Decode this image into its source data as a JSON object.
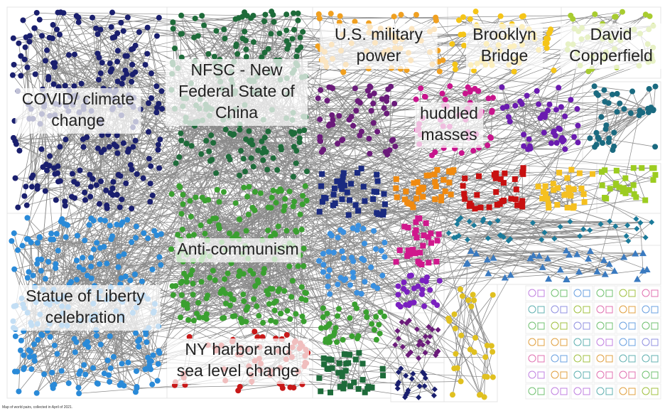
{
  "clusters": [
    {
      "label_lines": [
        "COVID/ climate",
        "change"
      ]
    },
    {
      "label_lines": [
        "NFSC - New",
        "Federal State of",
        "China"
      ]
    },
    {
      "label_lines": [
        "U.S. military",
        "power"
      ]
    },
    {
      "label_lines": [
        "Brooklyn",
        "Bridge"
      ]
    },
    {
      "label_lines": [
        "David",
        "Copperfield"
      ]
    },
    {
      "label_lines": [
        "huddled",
        "masses"
      ]
    },
    {
      "label_lines": [
        "Anti-communism"
      ]
    },
    {
      "label_lines": [
        "Statue of Liberty",
        "celebration"
      ]
    },
    {
      "label_lines": [
        "NY harbor and",
        "sea level change"
      ]
    }
  ],
  "footer": "Map of world pairs, collected in April of 2021."
}
